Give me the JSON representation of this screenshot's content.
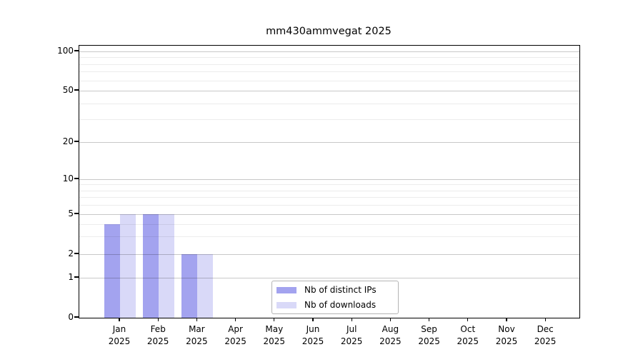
{
  "title": "mm430ammvegat 2025",
  "chart_data": {
    "type": "bar",
    "title": "mm430ammvegat 2025",
    "months": [
      "Jan",
      "Feb",
      "Mar",
      "Apr",
      "May",
      "Jun",
      "Jul",
      "Aug",
      "Sep",
      "Oct",
      "Nov",
      "Dec"
    ],
    "year": "2025",
    "series": [
      {
        "name": "Nb of distinct IPs",
        "color": "#a3a3ef",
        "values": [
          4,
          5,
          2,
          0,
          0,
          0,
          0,
          0,
          0,
          0,
          0,
          0
        ]
      },
      {
        "name": "Nb of downloads",
        "color": "#d9d9f8",
        "values": [
          5,
          5,
          2,
          0,
          0,
          0,
          0,
          0,
          0,
          0,
          0,
          0
        ]
      }
    ],
    "y_axis": {
      "scale": "symlog",
      "major_ticks": [
        0,
        1,
        2,
        5,
        10,
        20,
        50,
        100
      ],
      "minor_gridlines": [
        3,
        4,
        6,
        7,
        8,
        9,
        30,
        40,
        60,
        70,
        80,
        90
      ],
      "range_top": 107
    },
    "grid": true,
    "legend_position": "inside-bottom-center",
    "colors": {
      "grid_major": "#c8c8c8",
      "grid_minor": "#ececec",
      "axis": "#000000",
      "legend_border": "#b4b4b4"
    }
  }
}
